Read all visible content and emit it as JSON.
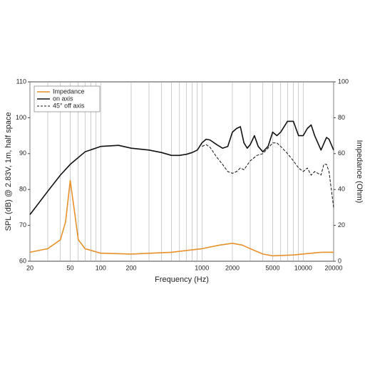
{
  "chart_data": {
    "type": "line",
    "xlabel": "Frequency (Hz)",
    "ylabel": "SPL (dB) @ 2.83V, 1m, half space",
    "y2label": "Impedance (Ohm)",
    "xscale": "log",
    "xlim": [
      20,
      20000
    ],
    "xticks": [
      20,
      50,
      100,
      200,
      1000,
      2000,
      5000,
      10000,
      20000
    ],
    "xgrid": [
      20,
      30,
      40,
      50,
      60,
      70,
      80,
      90,
      100,
      200,
      300,
      400,
      500,
      600,
      700,
      800,
      900,
      1000,
      2000,
      3000,
      4000,
      5000,
      6000,
      7000,
      8000,
      9000,
      10000,
      20000
    ],
    "ylim": [
      60,
      110
    ],
    "yticks": [
      60,
      70,
      80,
      90,
      100,
      110
    ],
    "y2lim": [
      0,
      100
    ],
    "y2ticks": [
      0,
      20,
      40,
      60,
      80,
      100
    ],
    "legend": "upper left",
    "series": [
      {
        "name": "Impedance",
        "color": "#e8902a",
        "axis": "y2",
        "dash": false,
        "x": [
          20,
          30,
          40,
          45,
          50,
          55,
          60,
          70,
          100,
          200,
          500,
          1000,
          1500,
          2000,
          2500,
          3000,
          4000,
          5000,
          8000,
          15000,
          20000
        ],
        "values": [
          5,
          7,
          12,
          22,
          45,
          28,
          12,
          7,
          4.5,
          4,
          5,
          7,
          9,
          10,
          9,
          7,
          4,
          3,
          3.5,
          5,
          5
        ]
      },
      {
        "name": "on axis",
        "color": "#111111",
        "dash": false,
        "x": [
          20,
          30,
          40,
          50,
          70,
          100,
          150,
          200,
          300,
          400,
          500,
          600,
          700,
          800,
          900,
          1000,
          1100,
          1200,
          1400,
          1600,
          1800,
          2000,
          2200,
          2400,
          2600,
          2800,
          3000,
          3300,
          3600,
          4000,
          4500,
          5000,
          5500,
          6000,
          7000,
          8000,
          9000,
          10000,
          11000,
          12000,
          13000,
          15000,
          17000,
          18000,
          20000
        ],
        "values": [
          73,
          79.5,
          84,
          87,
          90.5,
          92,
          92.3,
          91.5,
          91,
          90.3,
          89.5,
          89.5,
          89.8,
          90.3,
          91,
          93,
          94,
          93.8,
          92.5,
          91.5,
          92,
          96,
          97,
          97.5,
          93,
          91.5,
          92.5,
          95,
          92,
          90.5,
          92,
          96,
          95,
          96,
          99,
          99,
          95,
          95,
          97,
          98,
          95,
          91,
          94.5,
          94,
          91
        ]
      },
      {
        "name": "45° off axis",
        "color": "#111111",
        "dash": true,
        "x": [
          1000,
          1100,
          1200,
          1400,
          1600,
          1800,
          2000,
          2200,
          2400,
          2600,
          3000,
          3500,
          4000,
          4500,
          5000,
          5500,
          6000,
          7000,
          8000,
          9000,
          10000,
          11000,
          12000,
          13000,
          15000,
          16000,
          17000,
          18000,
          20000
        ],
        "values": [
          92,
          92.5,
          91.8,
          89,
          87,
          85,
          84.5,
          85,
          86,
          85.5,
          88,
          89.5,
          90,
          91.5,
          93,
          93,
          92,
          90,
          88,
          86,
          85,
          86,
          84,
          85,
          84,
          87,
          87,
          85,
          75
        ]
      }
    ]
  }
}
